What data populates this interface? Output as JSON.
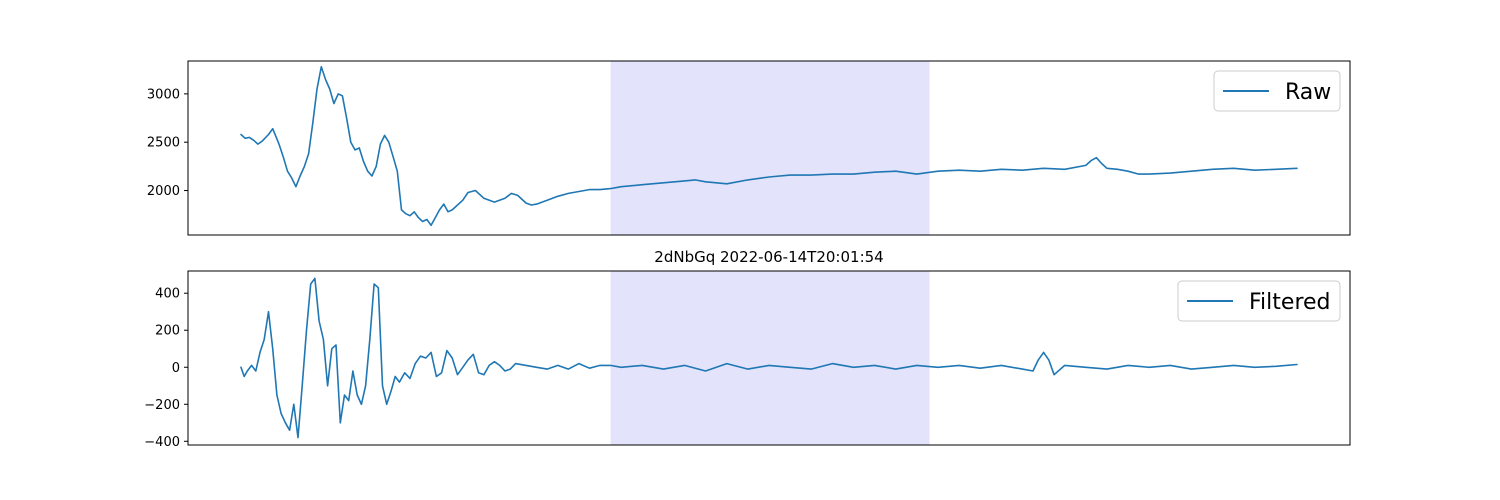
{
  "colors": {
    "line": "#1f77b4",
    "highlight": "#e3e3fb",
    "axes": "#000000",
    "legend_border": "#cccccc"
  },
  "chart_data": [
    {
      "type": "line",
      "title": "",
      "xlabel": "",
      "ylabel": "",
      "x_ticks_visible": false,
      "xlim": [
        0,
        1000
      ],
      "ylim": [
        1540,
        3340
      ],
      "yticks": [
        2000,
        2500,
        3000
      ],
      "ytick_labels": [
        "2000",
        "2500",
        "3000"
      ],
      "grid": false,
      "legend_position": "top-right",
      "highlight_span": [
        350,
        652
      ],
      "series": [
        {
          "name": "Raw",
          "band": 0,
          "x": [
            0,
            4,
            8,
            12,
            16,
            20,
            26,
            30,
            36,
            40,
            44,
            48,
            52,
            56,
            60,
            64,
            68,
            72,
            76,
            80,
            84,
            88,
            92,
            96,
            100,
            104,
            108,
            112,
            116,
            120,
            124,
            128,
            132,
            136,
            140,
            144,
            148,
            152,
            156,
            160,
            164,
            168,
            172,
            176,
            180,
            184,
            188,
            192,
            196,
            200,
            210,
            215,
            222,
            230,
            240,
            250,
            256,
            262,
            270,
            275,
            280,
            290,
            300,
            310,
            320,
            330,
            340,
            350,
            360,
            380,
            400,
            420,
            430,
            440,
            460,
            480,
            500,
            520,
            540,
            560,
            580,
            600,
            620,
            640,
            660,
            680,
            700,
            720,
            740,
            760,
            780,
            800,
            805,
            810,
            815,
            820,
            830,
            840,
            850,
            860,
            880,
            900,
            920,
            940,
            960,
            980,
            1000
          ],
          "y": [
            2580,
            2540,
            2550,
            2520,
            2480,
            2510,
            2580,
            2640,
            2480,
            2350,
            2200,
            2130,
            2040,
            2150,
            2250,
            2380,
            2700,
            3050,
            3280,
            3150,
            3050,
            2900,
            3000,
            2980,
            2750,
            2500,
            2420,
            2440,
            2300,
            2200,
            2150,
            2250,
            2480,
            2570,
            2500,
            2350,
            2200,
            1800,
            1760,
            1740,
            1780,
            1720,
            1680,
            1700,
            1640,
            1720,
            1800,
            1860,
            1780,
            1800,
            1900,
            1980,
            2000,
            1920,
            1880,
            1920,
            1970,
            1950,
            1870,
            1850,
            1860,
            1900,
            1940,
            1970,
            1990,
            2010,
            2010,
            2020,
            2040,
            2060,
            2080,
            2100,
            2110,
            2090,
            2070,
            2110,
            2140,
            2160,
            2160,
            2170,
            2170,
            2190,
            2200,
            2170,
            2200,
            2210,
            2200,
            2220,
            2210,
            2230,
            2220,
            2260,
            2310,
            2340,
            2280,
            2230,
            2220,
            2200,
            2170,
            2170,
            2180,
            2200,
            2220,
            2230,
            2210,
            2220,
            2230
          ]
        }
      ]
    },
    {
      "type": "line",
      "title": "2dNbGq 2022-06-14T20:01:54",
      "xlabel": "",
      "ylabel": "",
      "x_ticks_visible": false,
      "xlim": [
        0,
        1000
      ],
      "ylim": [
        -420,
        520
      ],
      "yticks": [
        -400,
        -200,
        0,
        200,
        400
      ],
      "ytick_labels": [
        "−400",
        "−200",
        "0",
        "200",
        "400"
      ],
      "grid": false,
      "legend_position": "top-right",
      "highlight_span": [
        350,
        652
      ],
      "series": [
        {
          "name": "Filtered",
          "band": 0,
          "x": [
            0,
            3,
            6,
            10,
            14,
            18,
            22,
            26,
            30,
            34,
            38,
            42,
            46,
            50,
            54,
            58,
            62,
            66,
            70,
            74,
            78,
            82,
            86,
            90,
            94,
            98,
            102,
            106,
            110,
            114,
            118,
            122,
            126,
            130,
            134,
            138,
            142,
            146,
            150,
            155,
            160,
            165,
            170,
            175,
            180,
            185,
            190,
            195,
            200,
            205,
            210,
            215,
            220,
            225,
            230,
            235,
            240,
            245,
            250,
            255,
            260,
            270,
            280,
            290,
            300,
            310,
            320,
            330,
            340,
            350,
            360,
            380,
            400,
            420,
            440,
            460,
            480,
            500,
            520,
            540,
            560,
            580,
            600,
            620,
            640,
            660,
            680,
            700,
            720,
            740,
            750,
            755,
            760,
            765,
            770,
            780,
            800,
            820,
            840,
            860,
            880,
            900,
            920,
            940,
            960,
            980,
            1000
          ],
          "y": [
            0,
            -50,
            -20,
            10,
            -20,
            80,
            150,
            300,
            100,
            -150,
            -250,
            -300,
            -340,
            -200,
            -380,
            -100,
            200,
            450,
            480,
            250,
            150,
            -100,
            100,
            120,
            -300,
            -150,
            -180,
            -20,
            -150,
            -200,
            -100,
            150,
            450,
            430,
            -100,
            -200,
            -130,
            -50,
            -80,
            -30,
            -60,
            20,
            60,
            50,
            80,
            -50,
            -30,
            90,
            50,
            -40,
            0,
            40,
            70,
            -30,
            -40,
            10,
            30,
            10,
            -20,
            -10,
            20,
            10,
            0,
            -10,
            10,
            -10,
            20,
            -5,
            10,
            10,
            0,
            10,
            -10,
            10,
            -20,
            20,
            -10,
            10,
            0,
            -10,
            20,
            0,
            10,
            -10,
            10,
            0,
            10,
            -5,
            10,
            -10,
            -20,
            40,
            80,
            40,
            -40,
            10,
            0,
            -10,
            10,
            0,
            10,
            -10,
            0,
            10,
            0,
            5,
            15
          ]
        }
      ]
    }
  ]
}
